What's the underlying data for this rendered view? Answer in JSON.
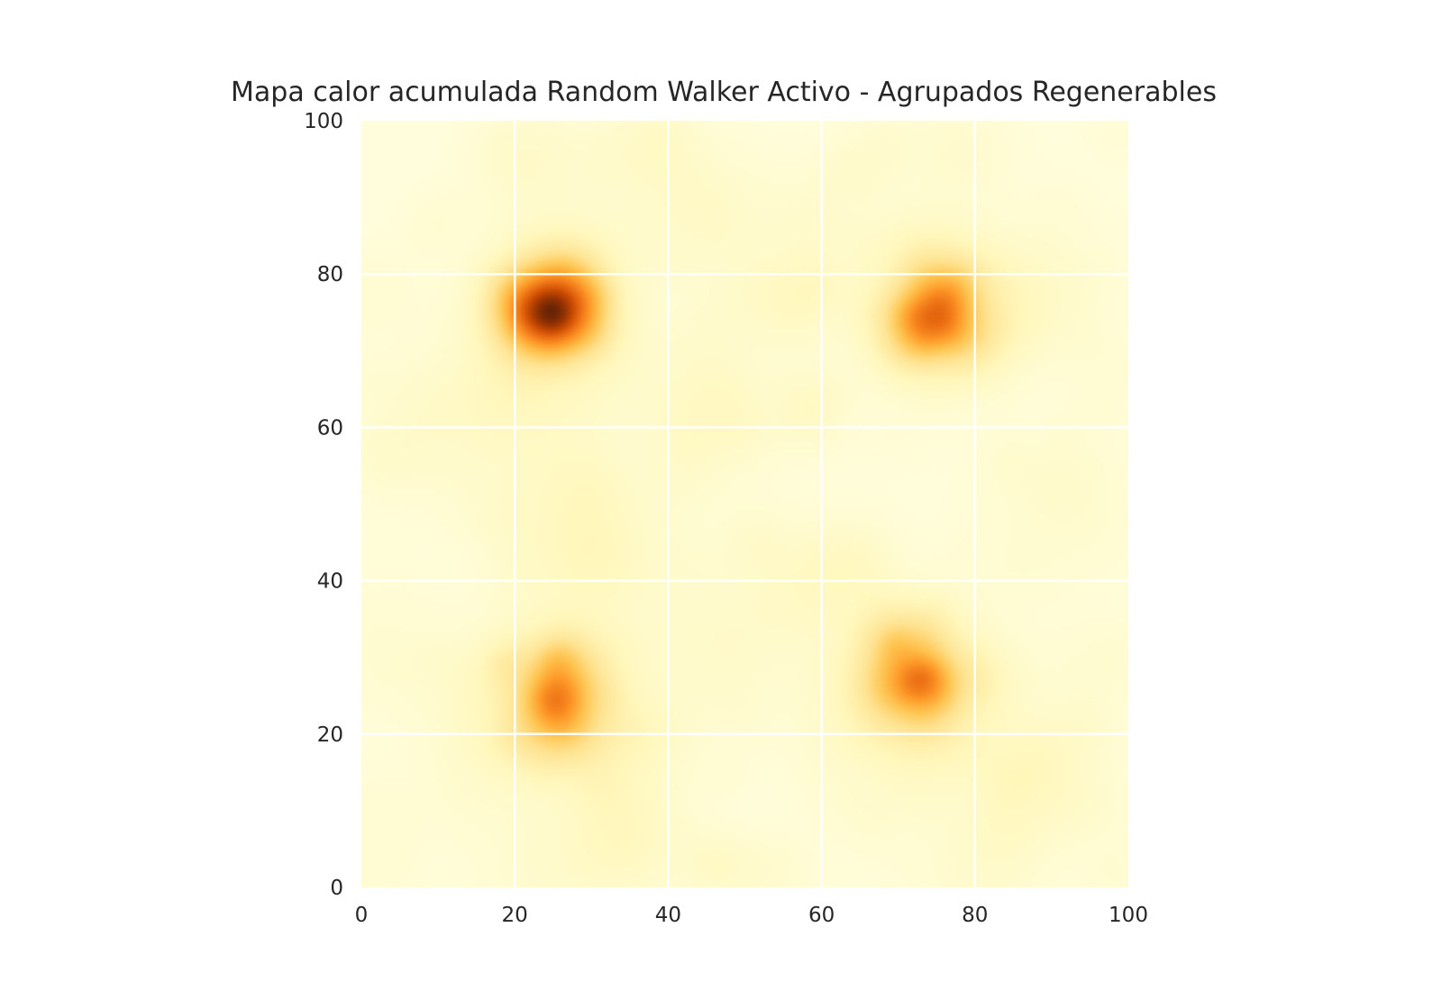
{
  "chart_data": {
    "type": "heatmap",
    "title": "Mapa calor acumulada Random Walker Activo - Agrupados Regenerables",
    "xlabel": "",
    "ylabel": "",
    "xlim": [
      0,
      100
    ],
    "ylim": [
      0,
      100
    ],
    "x_ticks": [
      "0",
      "20",
      "40",
      "60",
      "80",
      "100"
    ],
    "y_ticks": [
      "0",
      "20",
      "40",
      "60",
      "80",
      "100"
    ],
    "grid": true,
    "colormap": "YlOrBr",
    "colormap_stops": [
      "#ffffe5",
      "#fff7bc",
      "#fee391",
      "#fec44f",
      "#fe9929",
      "#ec7014",
      "#cc4c02",
      "#993404",
      "#662506"
    ],
    "background_level": 0.12,
    "hotspots": [
      {
        "x": 25,
        "y": 75,
        "intensity": 1.0
      },
      {
        "x": 75,
        "y": 75,
        "intensity": 0.82
      },
      {
        "x": 25,
        "y": 25,
        "intensity": 0.7
      },
      {
        "x": 73,
        "y": 27,
        "intensity": 0.76
      }
    ]
  }
}
